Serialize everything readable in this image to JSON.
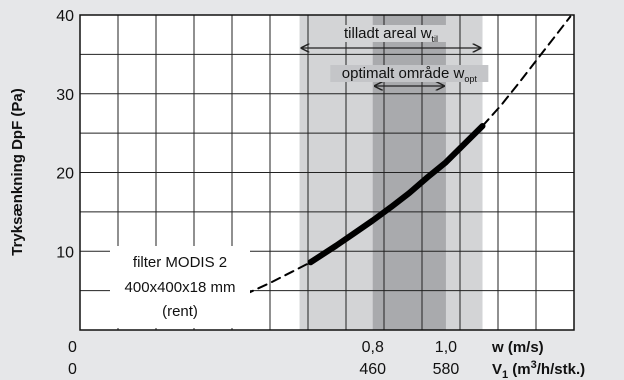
{
  "chart_data": {
    "type": "line",
    "ylabel": "Tryksænkning DpF (Pa)",
    "ylim": [
      0,
      40
    ],
    "y_ticks": [
      {
        "value": 10,
        "label": "10"
      },
      {
        "value": 20,
        "label": "20"
      },
      {
        "value": 30,
        "label": "30"
      },
      {
        "value": 40,
        "label": "40"
      }
    ],
    "xlim": [
      0,
      1.35
    ],
    "x_axis_labels": [
      {
        "name": "w",
        "text": "w (m/s)"
      },
      {
        "name": "v1",
        "text_main": "V",
        "sub": "1",
        "text_rest": " (m",
        "sup": "3",
        "text_end": "/h/stk.)"
      }
    ],
    "x_ticks": [
      {
        "w": 0,
        "w_label": "0",
        "v_label": "0"
      },
      {
        "w": 0.8,
        "w_label": "0,8",
        "v_label": "460"
      },
      {
        "w": 1.0,
        "w_label": "1,0",
        "v_label": "580"
      }
    ],
    "zones": [
      {
        "name": "tilladt areal",
        "label_main": "tilladt areal w",
        "label_sub": "til",
        "range": [
          0.6,
          1.1
        ],
        "color": "#d3d4d6"
      },
      {
        "name": "optimalt område",
        "label_main": "optimalt område w",
        "label_sub": "opt",
        "range": [
          0.8,
          1.0
        ],
        "color": "#a9aaad"
      }
    ],
    "series": [
      {
        "style": "dashed",
        "points": [
          [
            0.45,
            4.5
          ],
          [
            0.52,
            6.0
          ],
          [
            0.58,
            7.4
          ],
          [
            0.63,
            8.6
          ]
        ]
      },
      {
        "style": "solid-bold",
        "points": [
          [
            0.63,
            8.6
          ],
          [
            0.7,
            10.7
          ],
          [
            0.75,
            12.3
          ],
          [
            0.8,
            13.9
          ],
          [
            0.85,
            15.6
          ],
          [
            0.9,
            17.4
          ],
          [
            0.95,
            19.4
          ],
          [
            1.0,
            21.3
          ],
          [
            1.05,
            23.6
          ],
          [
            1.1,
            25.9
          ]
        ]
      },
      {
        "style": "dashed",
        "points": [
          [
            1.1,
            25.9
          ],
          [
            1.15,
            28.5
          ],
          [
            1.2,
            31.4
          ],
          [
            1.25,
            34.4
          ],
          [
            1.3,
            37.4
          ],
          [
            1.34,
            39.8
          ]
        ]
      }
    ],
    "annotations": {
      "filter_line1": "filter MODIS 2",
      "filter_line2": "400x400x18 mm",
      "filter_line3": "(rent)"
    },
    "grid": true
  }
}
